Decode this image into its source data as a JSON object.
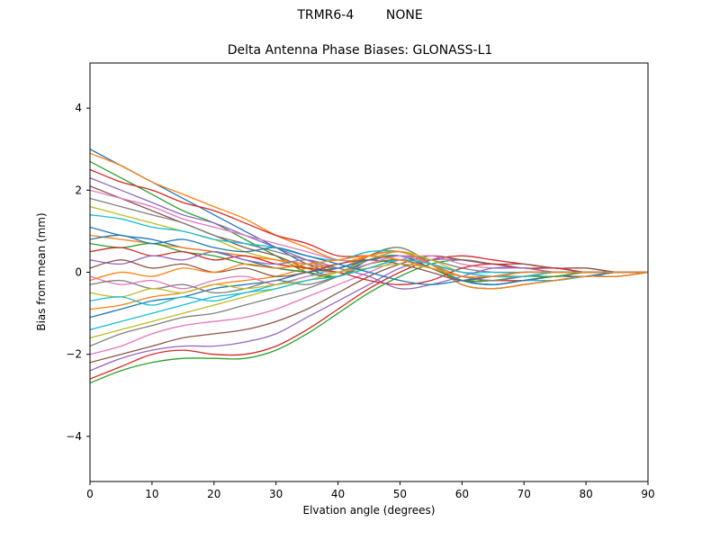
{
  "figure": {
    "suptitle": "TRMR6-4        NONE",
    "title": "Delta Antenna Phase Biases: GLONASS-L1",
    "xlabel": "Elvation angle (degrees)",
    "ylabel": "Bias from mean (mm)"
  },
  "chart_data": {
    "type": "line",
    "suptitle": "TRMR6-4 NONE",
    "title": "Delta Antenna Phase Biases: GLONASS-L1",
    "xlabel": "Elvation angle (degrees)",
    "ylabel": "Bias from mean (mm)",
    "xlim": [
      0,
      90
    ],
    "ylim": [
      -5.1,
      5.1
    ],
    "xticks": {
      "values": [
        0,
        10,
        20,
        30,
        40,
        50,
        60,
        70,
        80,
        90
      ],
      "labels": [
        "0",
        "10",
        "20",
        "30",
        "40",
        "50",
        "60",
        "70",
        "80",
        "90"
      ]
    },
    "yticks": {
      "values": [
        -4,
        -2,
        0,
        2,
        4
      ],
      "labels": [
        "−4",
        "−2",
        "0",
        "2",
        "4"
      ]
    },
    "grid": false,
    "legend": "none",
    "line_width": 1.3,
    "axis_color": "#000000",
    "palette": [
      "#1f77b4",
      "#ff7f0e",
      "#2ca02c",
      "#d62728",
      "#9467bd",
      "#8c564b",
      "#e377c2",
      "#7f7f7f",
      "#bcbd22",
      "#17becf"
    ],
    "x": [
      0,
      5,
      10,
      15,
      20,
      25,
      30,
      35,
      40,
      45,
      50,
      55,
      60,
      65,
      70,
      75,
      80,
      85,
      90
    ],
    "series": [
      {
        "values": [
          3.0,
          2.6,
          2.2,
          1.8,
          1.4,
          1.0,
          0.6,
          0.2,
          0.0,
          0.3,
          0.5,
          0.2,
          -0.2,
          -0.3,
          -0.2,
          -0.2,
          -0.1,
          -0.1,
          0.0
        ]
      },
      {
        "values": [
          2.9,
          2.6,
          2.2,
          1.9,
          1.6,
          1.3,
          0.9,
          0.6,
          0.3,
          0.3,
          0.4,
          0.1,
          -0.2,
          -0.2,
          -0.2,
          -0.1,
          -0.1,
          0.0,
          0.0
        ]
      },
      {
        "values": [
          2.7,
          2.3,
          1.9,
          1.5,
          1.2,
          0.8,
          0.4,
          0.0,
          -0.1,
          0.4,
          0.6,
          0.2,
          -0.3,
          -0.4,
          -0.3,
          -0.2,
          -0.1,
          -0.1,
          0.0
        ]
      },
      {
        "values": [
          2.5,
          2.2,
          2.0,
          1.7,
          1.5,
          1.2,
          0.9,
          0.7,
          0.4,
          0.4,
          0.3,
          0.1,
          -0.2,
          -0.2,
          -0.2,
          -0.1,
          -0.1,
          0.0,
          0.0
        ]
      },
      {
        "values": [
          2.3,
          2.0,
          1.7,
          1.4,
          1.2,
          0.9,
          0.6,
          0.3,
          0.0,
          0.4,
          0.5,
          0.2,
          -0.3,
          -0.4,
          -0.3,
          -0.2,
          -0.1,
          -0.1,
          0.0
        ]
      },
      {
        "values": [
          2.1,
          1.8,
          1.5,
          1.2,
          0.9,
          0.6,
          0.4,
          0.1,
          -0.1,
          0.3,
          0.4,
          0.1,
          -0.2,
          -0.3,
          -0.2,
          -0.1,
          -0.1,
          0.0,
          0.0
        ]
      },
      {
        "values": [
          2.0,
          1.8,
          1.6,
          1.3,
          1.1,
          0.9,
          0.7,
          0.5,
          0.3,
          0.3,
          0.4,
          0.1,
          -0.2,
          -0.2,
          -0.1,
          -0.1,
          0.0,
          0.0,
          0.0
        ]
      },
      {
        "values": [
          1.8,
          1.6,
          1.4,
          1.2,
          0.9,
          0.7,
          0.5,
          0.3,
          0.1,
          0.4,
          0.6,
          0.2,
          -0.3,
          -0.4,
          -0.3,
          -0.2,
          -0.1,
          0.0,
          0.0
        ]
      },
      {
        "values": [
          1.6,
          1.4,
          1.2,
          1.0,
          0.8,
          0.5,
          0.3,
          0.1,
          0.0,
          0.2,
          0.3,
          0.1,
          -0.1,
          -0.2,
          -0.1,
          -0.1,
          0.0,
          0.0,
          0.0
        ]
      },
      {
        "values": [
          1.4,
          1.3,
          1.1,
          1.0,
          0.8,
          0.7,
          0.6,
          0.4,
          0.3,
          0.5,
          0.5,
          0.2,
          -0.2,
          -0.3,
          -0.2,
          -0.2,
          -0.1,
          0.0,
          0.0
        ]
      },
      {
        "values": [
          1.1,
          0.9,
          0.8,
          0.6,
          0.5,
          0.3,
          0.1,
          0.0,
          -0.1,
          0.3,
          0.4,
          0.1,
          -0.2,
          -0.3,
          -0.2,
          -0.1,
          -0.1,
          0.0,
          0.0
        ]
      },
      {
        "values": [
          0.9,
          0.8,
          0.7,
          0.6,
          0.5,
          0.4,
          0.3,
          0.2,
          0.1,
          0.4,
          0.5,
          0.2,
          -0.3,
          -0.4,
          -0.3,
          -0.2,
          -0.1,
          -0.1,
          0.0
        ]
      },
      {
        "values": [
          -2.7,
          -2.4,
          -2.2,
          -2.1,
          -2.1,
          -2.1,
          -1.9,
          -1.5,
          -1.0,
          -0.5,
          -0.1,
          0.2,
          0.3,
          0.2,
          0.1,
          0.1,
          0.0,
          0.0,
          0.0
        ]
      },
      {
        "values": [
          -2.6,
          -2.3,
          -2.0,
          -1.9,
          -2.0,
          -2.0,
          -1.8,
          -1.4,
          -0.9,
          -0.4,
          0.0,
          0.3,
          0.4,
          0.3,
          0.2,
          0.1,
          0.1,
          0.0,
          0.0
        ]
      },
      {
        "values": [
          -2.4,
          -2.1,
          -1.9,
          -1.8,
          -1.8,
          -1.7,
          -1.5,
          -1.1,
          -0.7,
          -0.3,
          0.1,
          0.3,
          0.3,
          0.2,
          0.1,
          0.1,
          0.0,
          0.0,
          0.0
        ]
      },
      {
        "values": [
          -2.2,
          -2.0,
          -1.8,
          -1.6,
          -1.5,
          -1.4,
          -1.2,
          -0.9,
          -0.5,
          -0.1,
          0.2,
          0.4,
          0.3,
          0.2,
          0.2,
          0.1,
          0.1,
          0.0,
          0.0
        ]
      },
      {
        "values": [
          -2.0,
          -1.8,
          -1.5,
          -1.3,
          -1.2,
          -1.1,
          -0.9,
          -0.6,
          -0.3,
          0.0,
          0.3,
          0.4,
          0.2,
          0.1,
          0.1,
          0.0,
          0.0,
          0.0,
          0.0
        ]
      },
      {
        "values": [
          -1.8,
          -1.5,
          -1.3,
          -1.1,
          -1.0,
          -0.8,
          -0.6,
          -0.4,
          -0.1,
          0.2,
          0.4,
          0.3,
          0.1,
          0.0,
          0.0,
          0.0,
          0.0,
          0.0,
          0.0
        ]
      },
      {
        "values": [
          -1.6,
          -1.4,
          -1.2,
          -1.0,
          -0.8,
          -0.6,
          -0.4,
          -0.2,
          0.0,
          0.3,
          0.5,
          0.3,
          0.0,
          -0.1,
          -0.1,
          0.0,
          0.0,
          0.0,
          0.0
        ]
      },
      {
        "values": [
          -1.4,
          -1.2,
          -1.0,
          -0.8,
          -0.6,
          -0.5,
          -0.3,
          -0.1,
          0.1,
          0.3,
          0.4,
          0.2,
          0.0,
          0.0,
          0.0,
          0.0,
          0.0,
          0.0,
          0.0
        ]
      },
      {
        "values": [
          -1.1,
          -0.9,
          -0.7,
          -0.6,
          -0.4,
          -0.3,
          -0.2,
          0.0,
          0.1,
          0.3,
          0.4,
          0.2,
          -0.1,
          -0.1,
          -0.1,
          0.0,
          0.0,
          0.0,
          0.0
        ]
      },
      {
        "values": [
          -0.9,
          -0.8,
          -0.6,
          -0.5,
          -0.3,
          -0.2,
          -0.1,
          0.1,
          0.2,
          0.4,
          0.5,
          0.2,
          -0.1,
          -0.2,
          -0.1,
          -0.1,
          0.0,
          0.0,
          0.0
        ]
      },
      {
        "values": [
          0.7,
          0.6,
          0.7,
          0.5,
          0.4,
          0.2,
          0.1,
          0.0,
          -0.1,
          0.2,
          0.3,
          0.1,
          -0.2,
          -0.2,
          -0.1,
          -0.1,
          0.0,
          0.0,
          0.0
        ]
      },
      {
        "values": [
          0.5,
          0.6,
          0.4,
          0.5,
          0.3,
          0.4,
          0.2,
          0.1,
          0.0,
          -0.2,
          -0.3,
          -0.2,
          0.1,
          0.2,
          0.1,
          0.1,
          0.0,
          0.0,
          0.0
        ]
      },
      {
        "values": [
          0.3,
          0.2,
          0.4,
          0.3,
          0.5,
          0.3,
          0.2,
          0.3,
          0.1,
          -0.1,
          -0.4,
          -0.3,
          -0.1,
          0.1,
          0.1,
          0.0,
          0.0,
          0.0,
          0.0
        ]
      },
      {
        "values": [
          0.1,
          0.3,
          0.1,
          0.2,
          0.0,
          0.1,
          -0.1,
          0.0,
          0.2,
          0.3,
          0.2,
          0.0,
          -0.2,
          -0.1,
          -0.1,
          0.0,
          0.0,
          0.0,
          0.0
        ]
      },
      {
        "values": [
          -0.1,
          -0.3,
          -0.2,
          -0.4,
          -0.2,
          -0.1,
          -0.3,
          -0.1,
          0.0,
          0.2,
          0.4,
          0.2,
          0.0,
          -0.1,
          0.0,
          0.0,
          0.0,
          0.0,
          0.0
        ]
      },
      {
        "values": [
          -0.3,
          -0.2,
          -0.4,
          -0.3,
          -0.5,
          -0.4,
          -0.2,
          -0.3,
          -0.1,
          0.1,
          0.3,
          0.1,
          -0.1,
          -0.2,
          -0.1,
          0.0,
          0.0,
          0.0,
          0.0
        ]
      },
      {
        "values": [
          -0.5,
          -0.6,
          -0.4,
          -0.5,
          -0.3,
          -0.4,
          -0.3,
          -0.2,
          0.0,
          0.1,
          0.2,
          0.1,
          -0.1,
          -0.1,
          0.0,
          0.0,
          0.0,
          0.0,
          0.0
        ]
      },
      {
        "values": [
          -0.7,
          -0.6,
          -0.8,
          -0.6,
          -0.7,
          -0.5,
          -0.4,
          -0.2,
          -0.1,
          0.1,
          0.3,
          0.2,
          0.0,
          -0.1,
          -0.1,
          0.0,
          0.0,
          0.0,
          0.0
        ]
      },
      {
        "values": [
          0.8,
          0.9,
          0.7,
          0.8,
          0.6,
          0.5,
          0.6,
          0.4,
          0.2,
          0.0,
          -0.2,
          -0.3,
          -0.2,
          -0.1,
          0.0,
          0.0,
          0.0,
          0.0,
          0.0
        ]
      },
      {
        "values": [
          -0.2,
          0.0,
          -0.1,
          0.1,
          0.0,
          0.2,
          0.1,
          0.2,
          0.3,
          0.4,
          0.3,
          0.1,
          -0.1,
          -0.1,
          0.0,
          0.0,
          0.0,
          0.0,
          0.0
        ]
      }
    ]
  }
}
